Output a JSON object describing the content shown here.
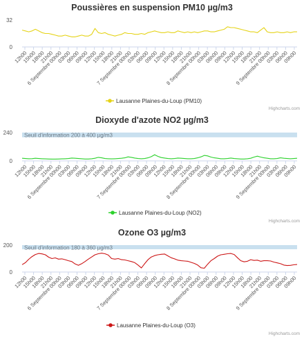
{
  "credits": "Highcharts.com",
  "chart_data": [
    {
      "type": "line",
      "title": "Poussières en suspension PM10 µg/m3",
      "color": "#e5d317",
      "ylim": [
        0,
        32
      ],
      "yticks": [
        "0",
        "32"
      ],
      "grid": false,
      "legend_placement": "bottom-center",
      "band": null,
      "series": [
        {
          "name": "Lausanne Plaines-du-Loup (PM10)",
          "values": [
            20,
            19,
            18,
            19,
            21,
            19,
            17,
            16,
            16,
            15,
            14,
            13,
            13,
            14,
            13,
            12,
            12,
            13,
            14,
            13,
            13,
            15,
            22,
            17,
            16,
            17,
            15,
            14,
            13,
            14,
            15,
            17,
            16,
            16,
            15,
            15,
            16,
            15,
            17,
            18,
            19,
            18,
            17,
            17,
            18,
            17,
            17,
            19,
            18,
            17,
            18,
            17,
            18,
            17,
            18,
            19,
            19,
            18,
            18,
            19,
            20,
            21,
            24,
            23,
            23,
            22,
            21,
            20,
            19,
            18,
            18,
            17,
            20,
            23,
            18,
            17,
            17,
            18,
            17,
            17,
            18,
            17,
            18,
            18
          ]
        }
      ],
      "x_labels": [
        "12h00",
        "15h00",
        "18h00",
        "21h00",
        "6 Septembre 00h00",
        "03h00",
        "06h00",
        "09h00",
        "12h00",
        "15h00",
        "18h00",
        "21h00",
        "7 Septembre 00h00",
        "03h00",
        "06h00",
        "09h00",
        "12h00",
        "15h00",
        "18h00",
        "21h00",
        "8 Septembre 00h00",
        "03h00",
        "06h00",
        "09h00",
        "12h00",
        "15h00",
        "18h00",
        "21h00",
        "9 Septembre 00h00",
        "03h00",
        "06h00",
        "09h00"
      ]
    },
    {
      "type": "line",
      "title": "Dioxyde d'azote NO2 µg/m3",
      "color": "#2bd12b",
      "ylim": [
        0,
        240
      ],
      "yticks": [
        "0",
        "240"
      ],
      "grid": false,
      "legend_placement": "bottom-center",
      "band": {
        "from": 200,
        "to": 240,
        "label": "Seuil d'information 200 à 400 µg/m3",
        "color": "#c9e0ef"
      },
      "series": [
        {
          "name": "Lausanne Plaines-du-Loup (NO2)",
          "values": [
            22,
            20,
            18,
            19,
            22,
            20,
            18,
            17,
            16,
            15,
            15,
            16,
            17,
            18,
            20,
            24,
            22,
            20,
            18,
            16,
            16,
            18,
            22,
            30,
            26,
            20,
            18,
            17,
            18,
            20,
            22,
            26,
            34,
            30,
            24,
            20,
            18,
            20,
            26,
            36,
            52,
            38,
            28,
            24,
            20,
            18,
            20,
            24,
            22,
            20,
            18,
            18,
            20,
            26,
            34,
            46,
            42,
            32,
            26,
            22,
            18,
            18,
            20,
            24,
            20,
            18,
            16,
            16,
            18,
            22,
            32,
            40,
            32,
            26,
            22,
            18,
            18,
            20,
            26,
            22,
            20,
            18,
            20,
            22
          ]
        }
      ],
      "x_labels": [
        "12h00",
        "15h00",
        "18h00",
        "21h00",
        "6 Septembre 00h00",
        "03h00",
        "06h00",
        "09h00",
        "12h00",
        "15h00",
        "18h00",
        "21h00",
        "7 Septembre 00h00",
        "03h00",
        "06h00",
        "09h00",
        "12h00",
        "15h00",
        "18h00",
        "21h00",
        "8 Septembre 00h00",
        "03h00",
        "06h00",
        "09h00",
        "12h00",
        "15h00",
        "18h00",
        "21h00",
        "9 Septembre 00h00",
        "03h00",
        "06h00",
        "09h00"
      ]
    },
    {
      "type": "line",
      "title": "Ozone O3 µg/m3",
      "color": "#cc1515",
      "ylim": [
        0,
        200
      ],
      "yticks": [
        "0",
        "200"
      ],
      "grid": false,
      "legend_placement": "bottom-center",
      "band": {
        "from": 180,
        "to": 200,
        "label": "Seuil d'information 180 à 360 µg/m3",
        "color": "#c9e0ef"
      },
      "series": [
        {
          "name": "Lausanne Plaines-du-Loup (O3)",
          "values": [
            55,
            70,
            95,
            115,
            130,
            138,
            135,
            128,
            110,
            100,
            105,
            96,
            98,
            92,
            84,
            78,
            60,
            50,
            62,
            78,
            96,
            112,
            128,
            136,
            140,
            136,
            126,
            100,
            96,
            100,
            92,
            90,
            84,
            78,
            70,
            52,
            30,
            62,
            92,
            112,
            122,
            128,
            132,
            134,
            120,
            106,
            98,
            88,
            84,
            82,
            80,
            72,
            64,
            52,
            32,
            28,
            58,
            84,
            100,
            118,
            128,
            132,
            136,
            138,
            130,
            106,
            84,
            76,
            80,
            92,
            86,
            88,
            80,
            84,
            84,
            82,
            74,
            68,
            62,
            52,
            48,
            50,
            54,
            56
          ]
        }
      ],
      "x_labels": [
        "12h00",
        "15h00",
        "18h00",
        "21h00",
        "6 Septembre 00h00",
        "03h00",
        "06h00",
        "09h00",
        "12h00",
        "15h00",
        "18h00",
        "21h00",
        "7 Septembre 00h00",
        "03h00",
        "06h00",
        "09h00",
        "12h00",
        "15h00",
        "18h00",
        "21h00",
        "8 Septembre 00h00",
        "03h00",
        "06h00",
        "09h00",
        "12h00",
        "15h00",
        "18h00",
        "21h00",
        "9 Septembre 00h00",
        "03h00",
        "06h00",
        "09h00"
      ]
    }
  ]
}
